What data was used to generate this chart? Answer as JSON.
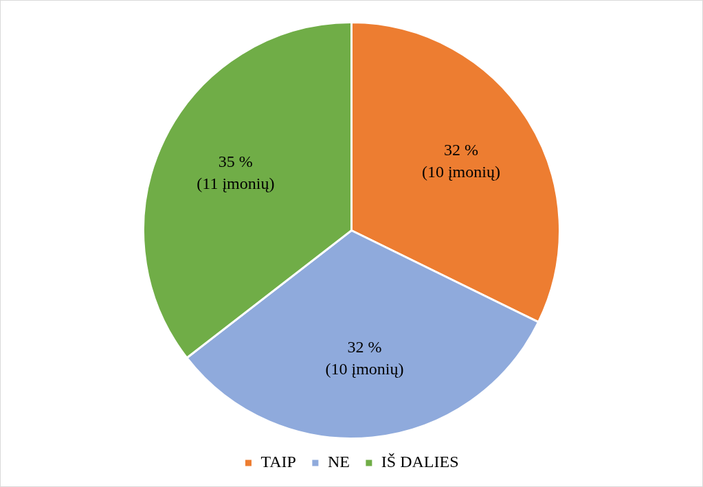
{
  "chart_data": {
    "type": "pie",
    "categories": [
      "TAIP",
      "NE",
      "IŠ DALIES"
    ],
    "values": [
      10,
      10,
      11
    ],
    "colors": [
      "#ed7d31",
      "#8faadc",
      "#70ad47"
    ],
    "value_labels": [
      "32 %\n(10 įmonių)",
      "32 %\n(10 įmonių)",
      "35 %\n(11 įmonių)"
    ],
    "legend": "bottom"
  }
}
